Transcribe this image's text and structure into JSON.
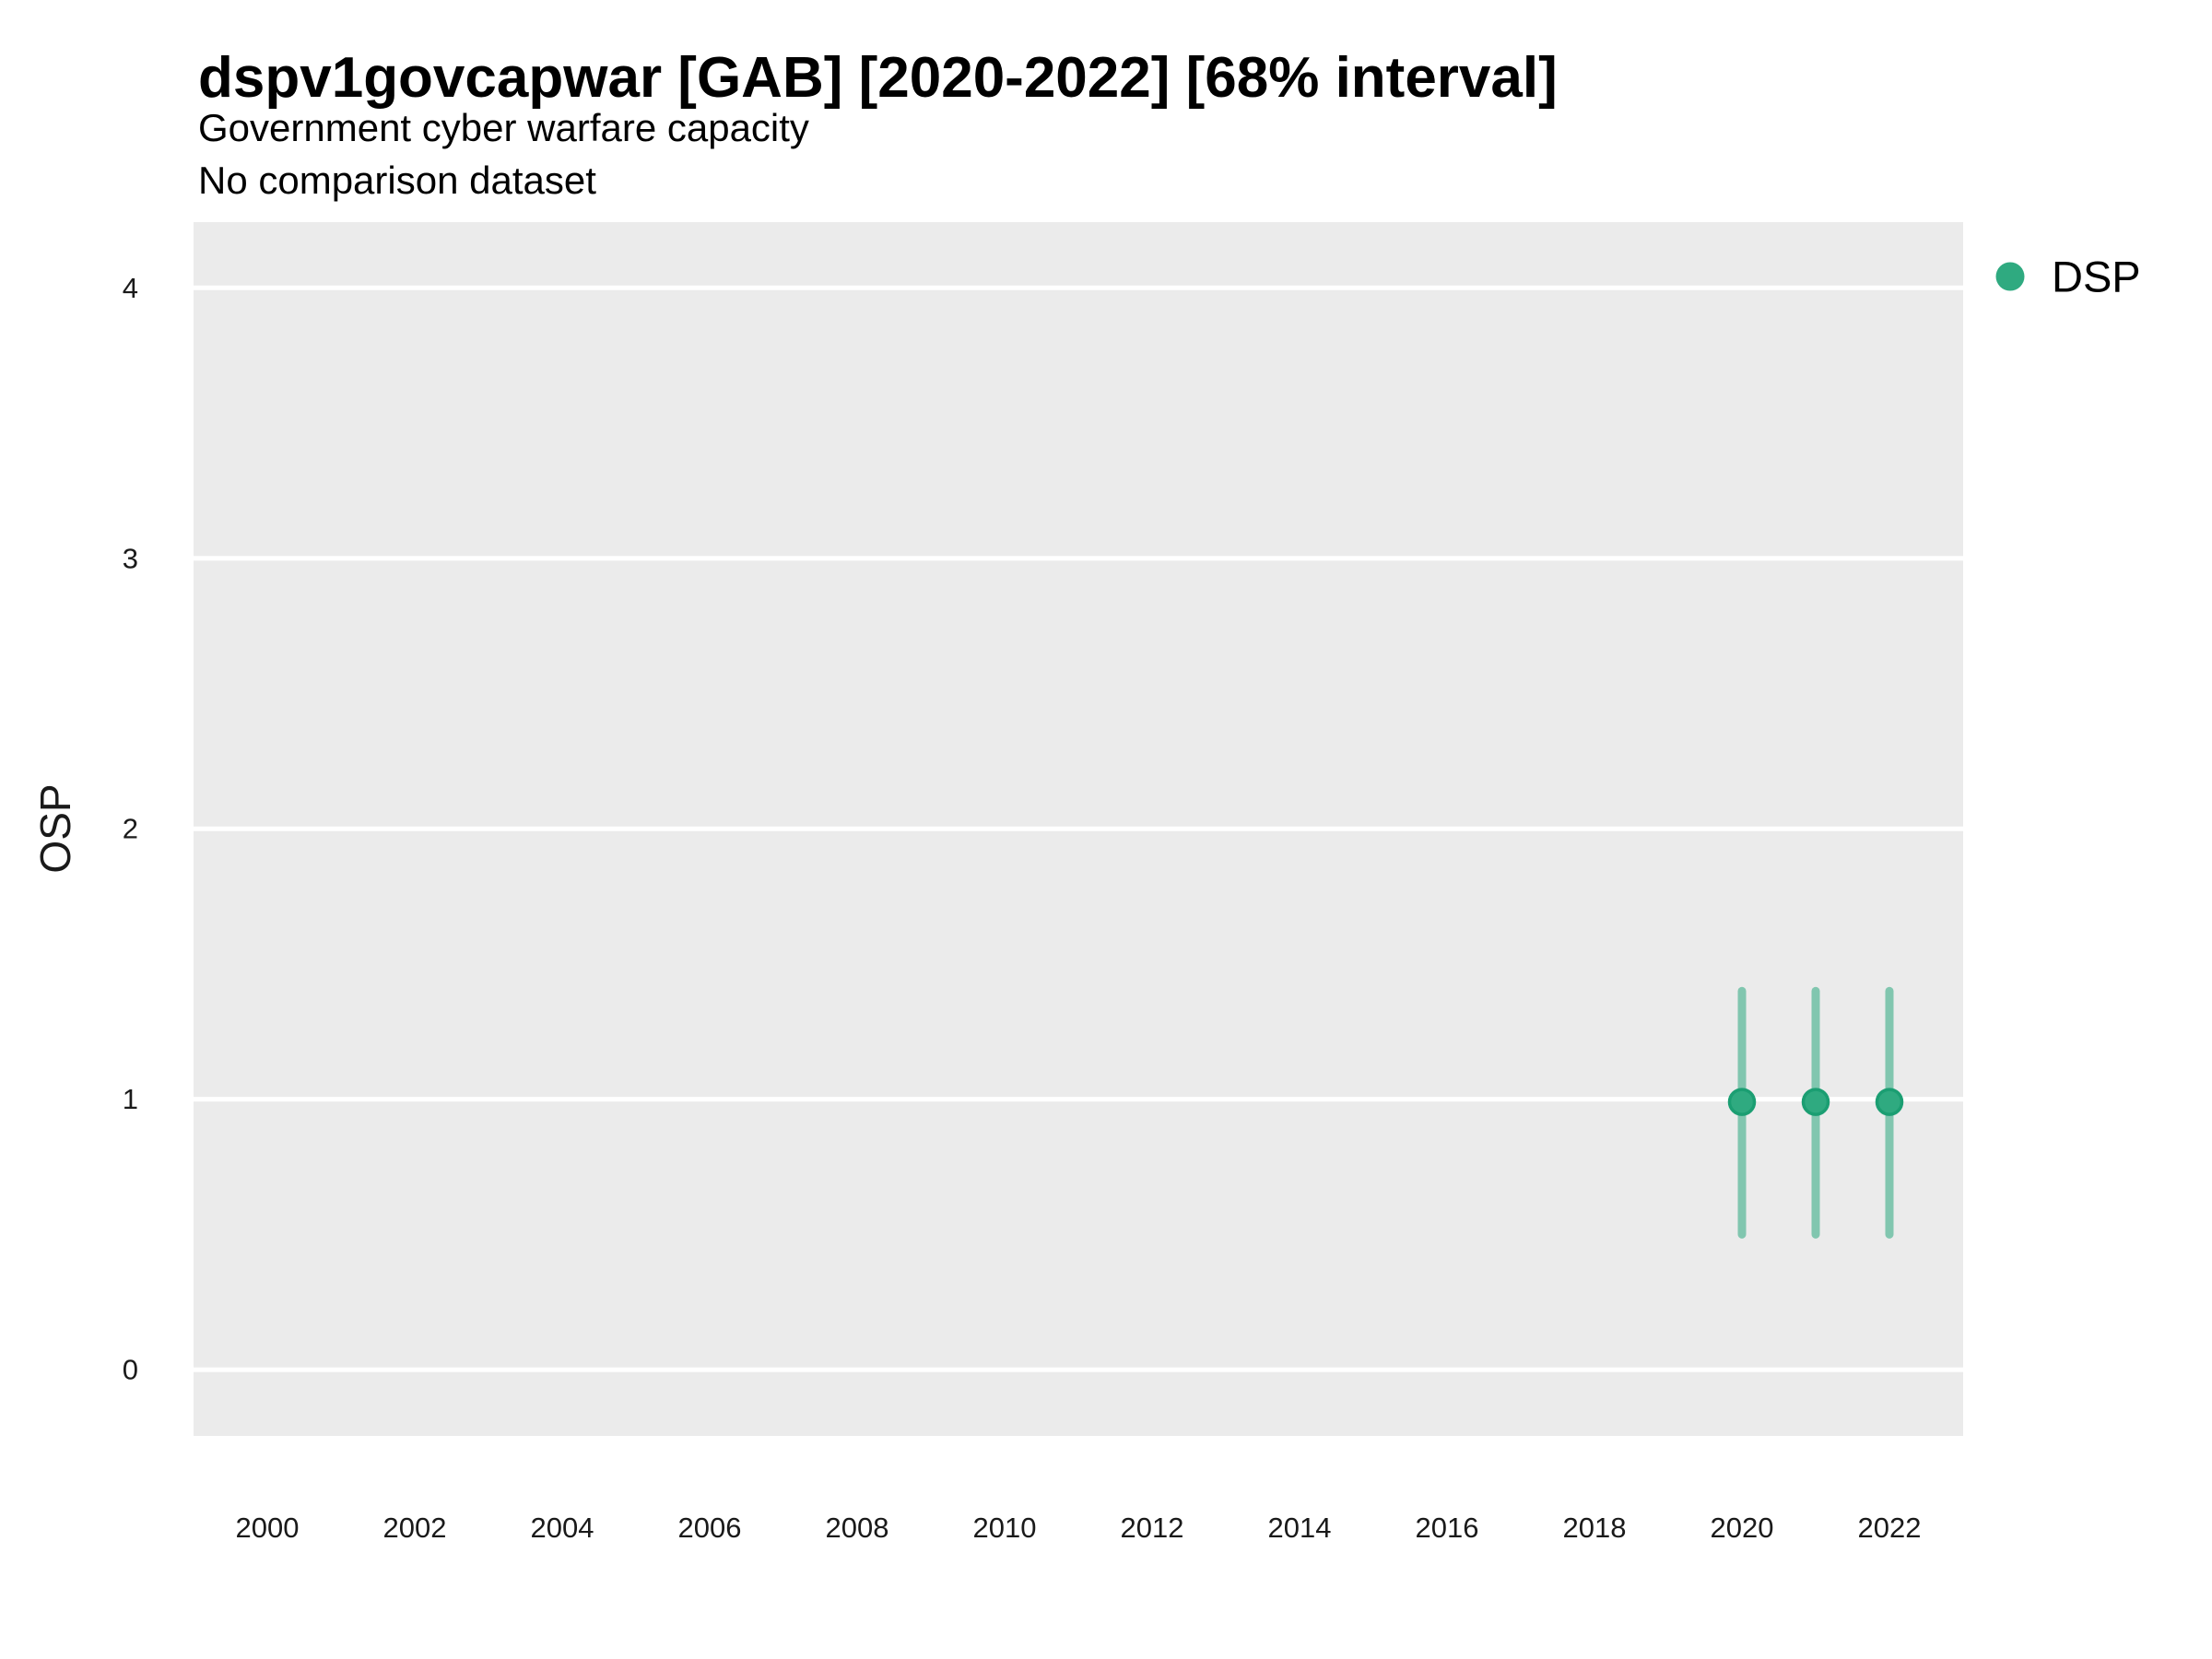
{
  "colors": {
    "panel_bg": "#ebebeb",
    "grid": "#ffffff",
    "point_fill": "#2faa80",
    "point_stroke": "#1b9e72",
    "interval_stroke": "rgba(42,168,126,0.55)",
    "title_text": "#000000",
    "tick_text": "#1a1a1a"
  },
  "chart_data": {
    "type": "pointrange",
    "title": "dspv1govcapwar [GAB] [2020-2022] [68% interval]",
    "subtitle": "Government cyber warfare capacity",
    "note": "No comparison dataset",
    "xlabel": "",
    "ylabel": "OSP",
    "interval_level": "68%",
    "legend_position": "right-top",
    "grid": {
      "horizontal_major": true,
      "vertical": false,
      "minor": false
    },
    "x_ticks": [
      2000,
      2002,
      2004,
      2006,
      2008,
      2010,
      2012,
      2014,
      2016,
      2018,
      2020,
      2022
    ],
    "y_ticks": [
      0,
      1,
      2,
      3,
      4
    ],
    "xlim": [
      1999,
      2023
    ],
    "ylim": [
      -0.245,
      4.243
    ],
    "series": [
      {
        "name": "DSP",
        "points": [
          {
            "x": 2020,
            "y": 0.99,
            "low": 0.5,
            "high": 1.4
          },
          {
            "x": 2021,
            "y": 0.99,
            "low": 0.5,
            "high": 1.4
          },
          {
            "x": 2022,
            "y": 0.99,
            "low": 0.5,
            "high": 1.4
          }
        ]
      }
    ]
  }
}
